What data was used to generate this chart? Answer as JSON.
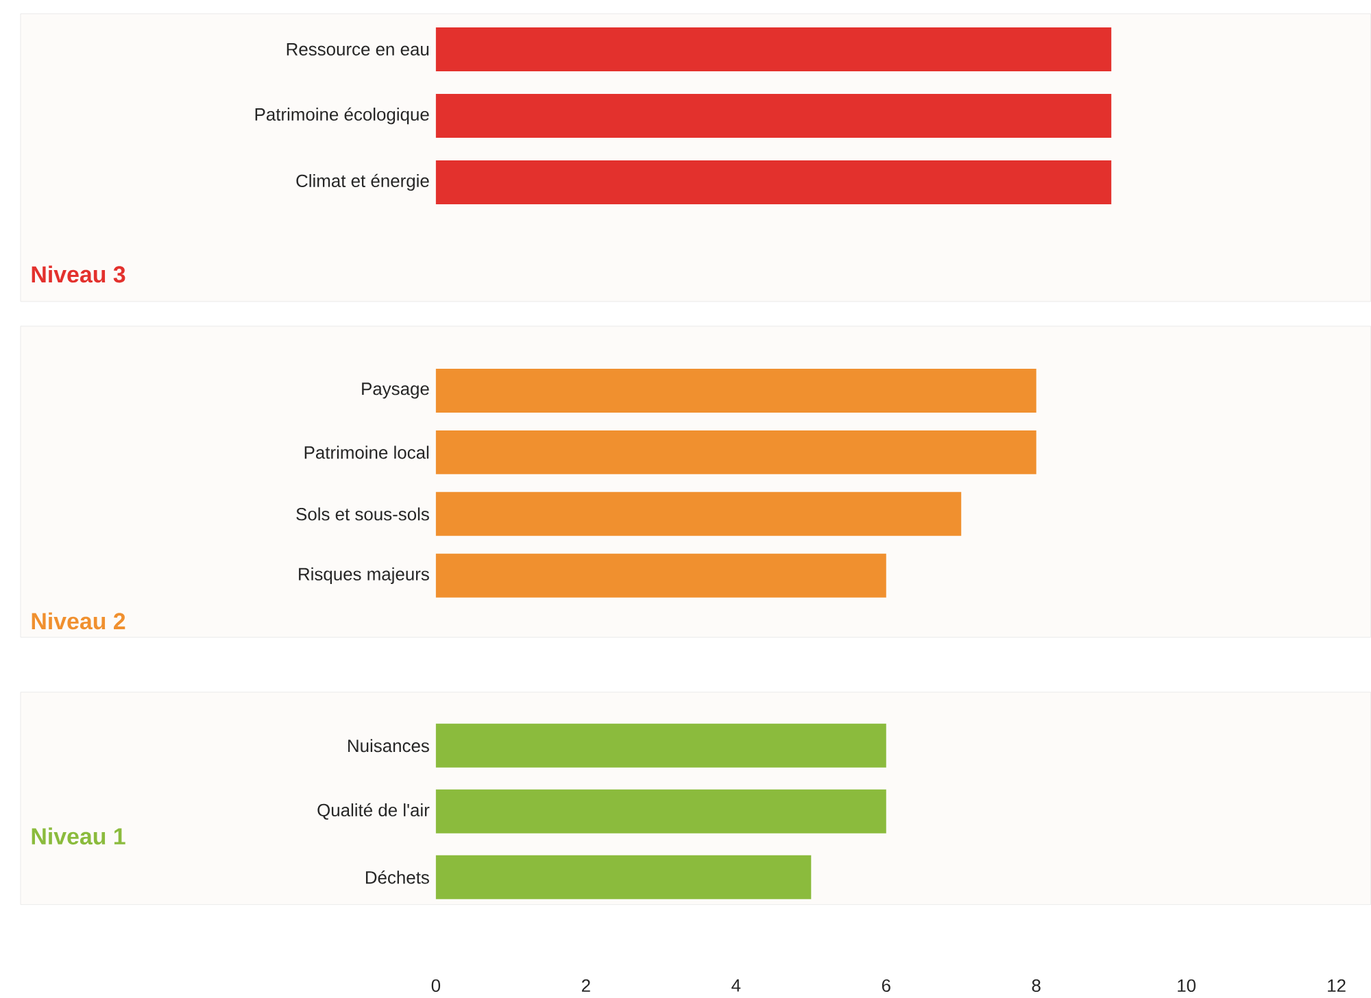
{
  "chart_data": [
    {
      "type": "bar",
      "orientation": "horizontal",
      "annotations": [
        "Niveau 3"
      ],
      "categories": [
        "Ressource en eau",
        "Patrimoine écologique",
        "Climat et énergie"
      ],
      "values": [
        9,
        9,
        9
      ],
      "color": "#e3312d",
      "xlim": [
        0,
        12
      ],
      "xticks": [
        0,
        2,
        4,
        6,
        8,
        10,
        12
      ],
      "tick_labels": "y"
    },
    {
      "type": "bar",
      "orientation": "horizontal",
      "annotations": [
        "Niveau 2"
      ],
      "categories": [
        "Paysage",
        "Patrimoine local",
        "Sols et sous-sols",
        "Risques majeurs"
      ],
      "values": [
        8,
        8,
        7,
        6
      ],
      "color": "#f0902f",
      "xlim": [
        0,
        12
      ],
      "xticks": [
        0,
        2,
        4,
        6,
        8,
        10,
        12
      ],
      "tick_labels": "y"
    },
    {
      "type": "bar",
      "orientation": "horizontal",
      "annotations": [
        "Niveau 1"
      ],
      "categories": [
        "Nuisances",
        "Qualité de l'air",
        "Déchets"
      ],
      "values": [
        6,
        6,
        5
      ],
      "color": "#8bbb3d",
      "xlim": [
        0,
        12
      ],
      "xticks": [
        0,
        2,
        4,
        6,
        8,
        10,
        12
      ]
    }
  ]
}
